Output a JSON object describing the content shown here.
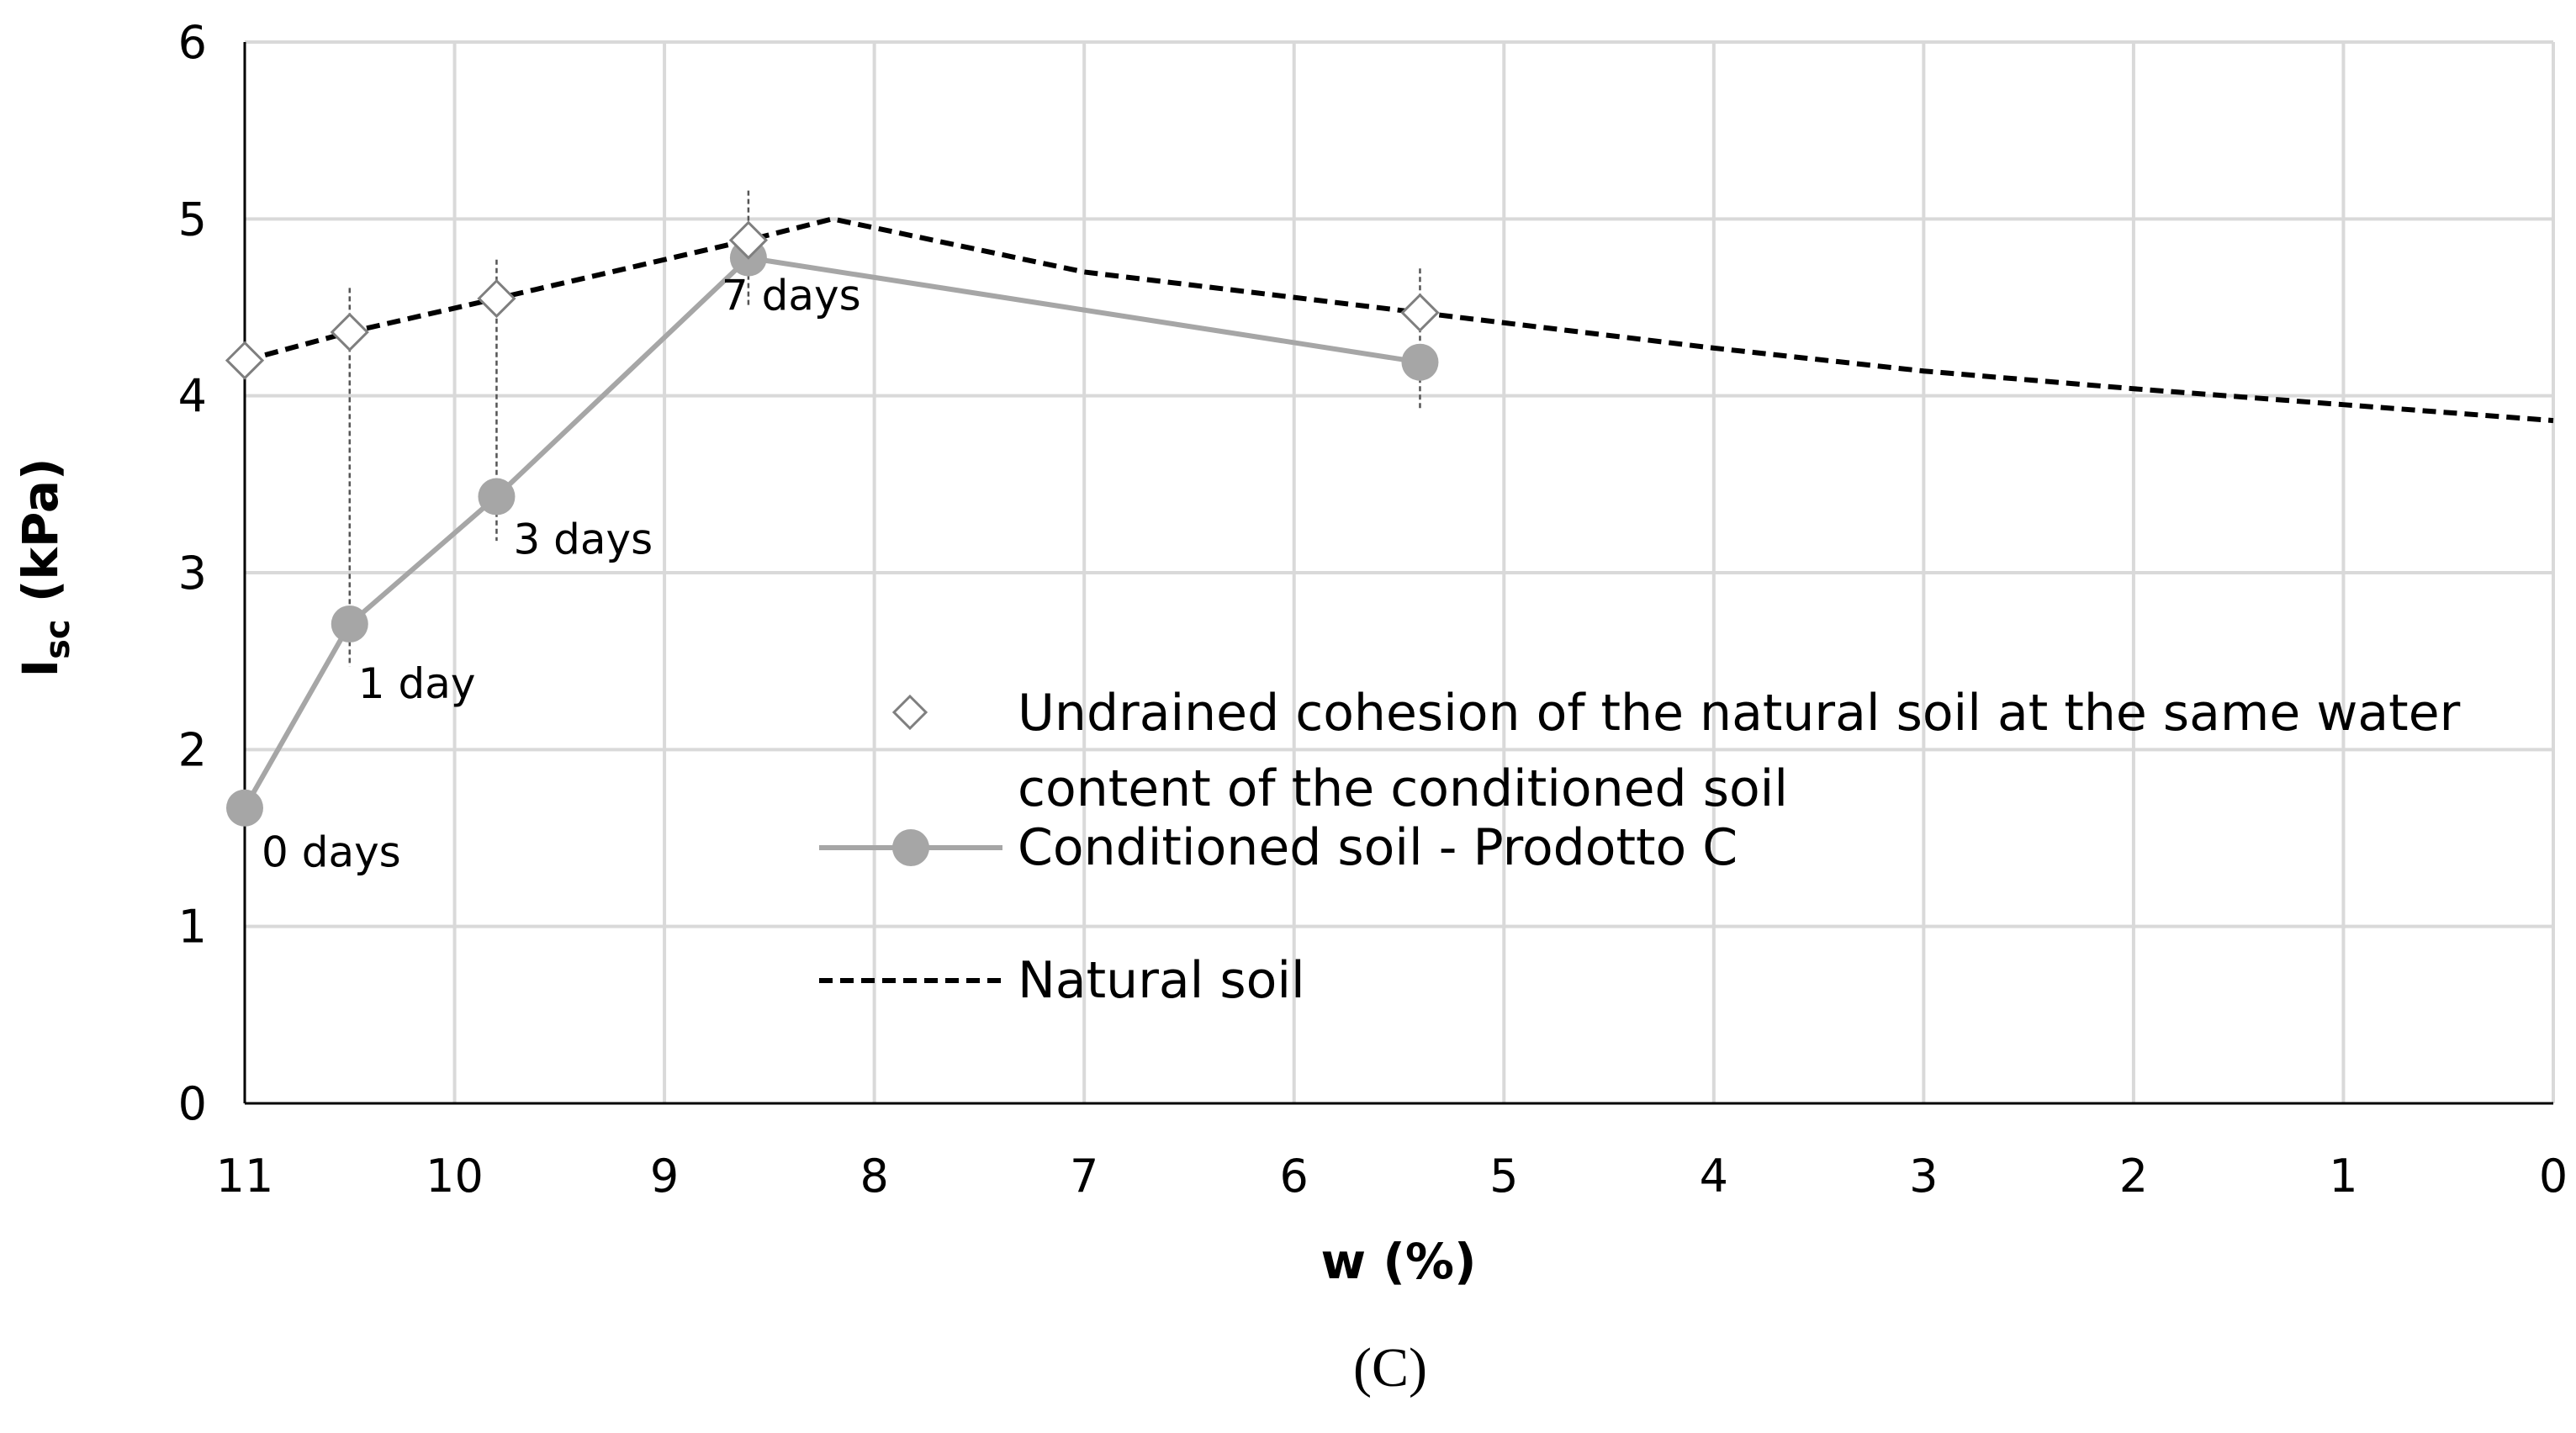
{
  "chart_data": {
    "type": "line",
    "title": "",
    "caption": "(C)",
    "xlabel": "w (%)",
    "ylabel": {
      "main": "I",
      "sub": "sc",
      "unit": " (kPa)"
    },
    "xlim": [
      11,
      0
    ],
    "ylim": [
      0,
      6
    ],
    "x_reversed": true,
    "grid": true,
    "x_ticks": [
      11,
      10,
      9,
      8,
      7,
      6,
      5,
      4,
      3,
      2,
      1,
      0
    ],
    "y_ticks": [
      0,
      1,
      2,
      3,
      4,
      5,
      6
    ],
    "series": [
      {
        "name": "Natural soil",
        "style": "dashed",
        "color": "#000000",
        "x": [
          11,
          10.5,
          9.8,
          8.6,
          8.2,
          7,
          5.4,
          4,
          3,
          2,
          1,
          0
        ],
        "y": [
          4.2,
          4.36,
          4.55,
          4.88,
          5.0,
          4.7,
          4.47,
          4.27,
          4.14,
          4.04,
          3.95,
          3.86
        ]
      },
      {
        "name": "Undrained cohesion of the natural soil at the same water content of the conditioned soil",
        "legend_lines": [
          "Undrained cohesion of the natural soil at the same water",
          "content of the conditioned soil"
        ],
        "marker": "diamond",
        "color": "#8c8c8c",
        "x": [
          11,
          10.5,
          9.8,
          8.6,
          5.4
        ],
        "y": [
          4.2,
          4.36,
          4.55,
          4.88,
          4.47
        ],
        "error": [
          0,
          0.25,
          0.22,
          0.28,
          0.25
        ]
      },
      {
        "name": "Conditioned soil - Prodotto C",
        "marker": "circle",
        "color": "#a6a6a6",
        "x": [
          11,
          10.5,
          9.8,
          8.6,
          5.4
        ],
        "y": [
          1.67,
          2.71,
          3.43,
          4.78,
          4.19
        ],
        "error_low": [
          0,
          0,
          0,
          0,
          0
        ],
        "error_high": [
          0,
          0,
          0,
          0,
          0
        ]
      }
    ],
    "error_bars": [
      {
        "x": 10.5,
        "y_top": 4.61,
        "y_bottom": 2.47
      },
      {
        "x": 9.8,
        "y_top": 4.77,
        "y_bottom": 3.18
      },
      {
        "x": 8.6,
        "y_top": 5.16,
        "y_bottom": 4.5
      },
      {
        "x": 5.4,
        "y_top": 4.72,
        "y_bottom": 3.93
      }
    ],
    "annotations": [
      {
        "text": "0 days",
        "x": 11,
        "y": 1.67
      },
      {
        "text": "1 day",
        "x": 10.5,
        "y": 2.71
      },
      {
        "text": "3 days",
        "x": 9.8,
        "y": 3.43
      },
      {
        "text": "7 days",
        "x": 8.6,
        "y": 4.78
      }
    ],
    "legend_position": "center-right"
  }
}
